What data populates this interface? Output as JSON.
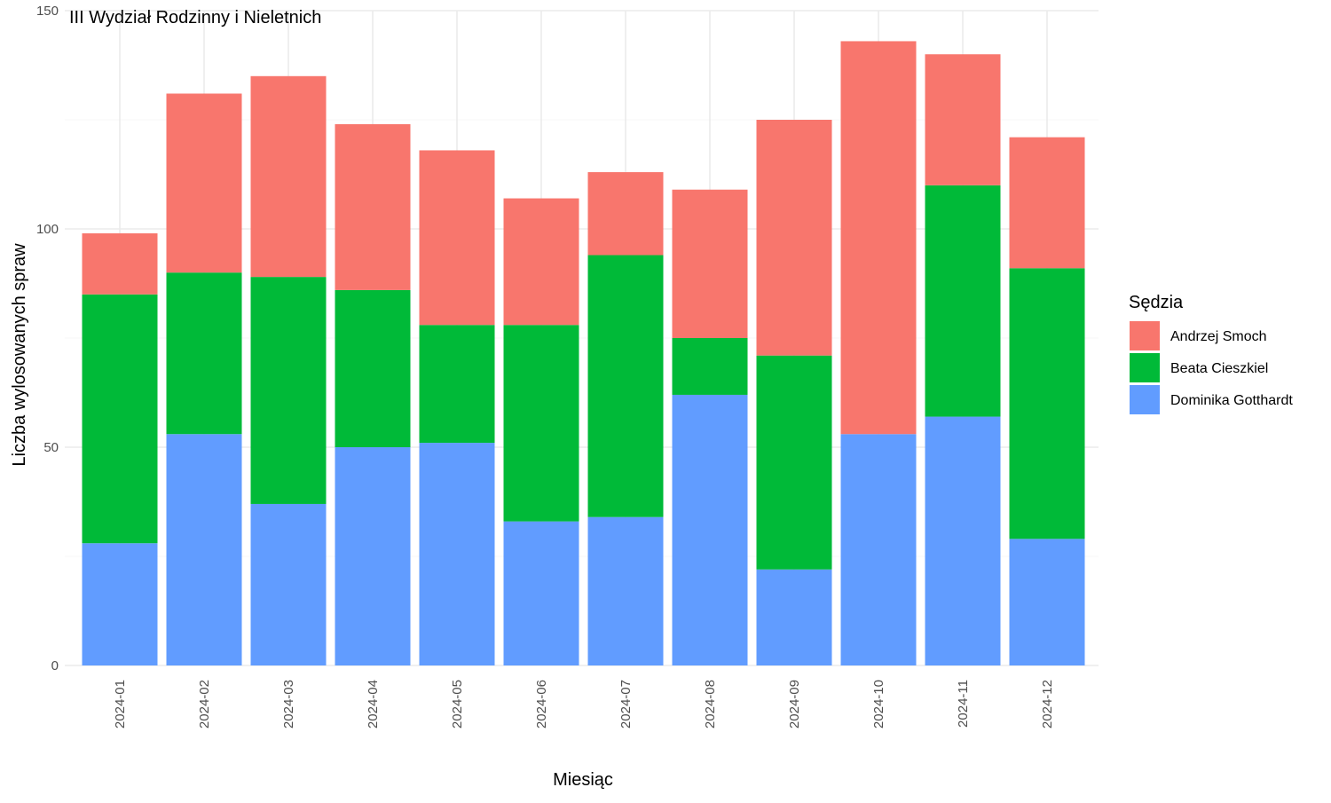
{
  "chart_data": {
    "type": "bar",
    "stacked": true,
    "title": "III Wydział Rodzinny i Nieletnich",
    "xlabel": "Miesiąc",
    "ylabel": "Liczba wylosowanych spraw",
    "ylim": [
      0,
      150
    ],
    "yticks": [
      0,
      50,
      100,
      150
    ],
    "grid": true,
    "legend": {
      "title": "Sędzia",
      "position": "right"
    },
    "categories": [
      "2024-01",
      "2024-02",
      "2024-03",
      "2024-04",
      "2024-05",
      "2024-06",
      "2024-07",
      "2024-08",
      "2024-09",
      "2024-10",
      "2024-11",
      "2024-12"
    ],
    "series": [
      {
        "name": "Andrzej Smoch",
        "color": "#F8766D",
        "values": [
          14,
          41,
          46,
          38,
          40,
          29,
          19,
          34,
          54,
          90,
          30,
          30
        ]
      },
      {
        "name": "Beata Cieszkiel",
        "color": "#00BA38",
        "values": [
          57,
          37,
          52,
          36,
          27,
          45,
          60,
          13,
          49,
          0,
          53,
          62
        ]
      },
      {
        "name": "Dominika Gotthardt",
        "color": "#619CFF",
        "values": [
          28,
          53,
          37,
          50,
          51,
          33,
          34,
          62,
          22,
          53,
          57,
          29
        ]
      }
    ],
    "stack_order_bottom_to_top": [
      "Dominika Gotthardt",
      "Beata Cieszkiel",
      "Andrzej Smoch"
    ]
  }
}
